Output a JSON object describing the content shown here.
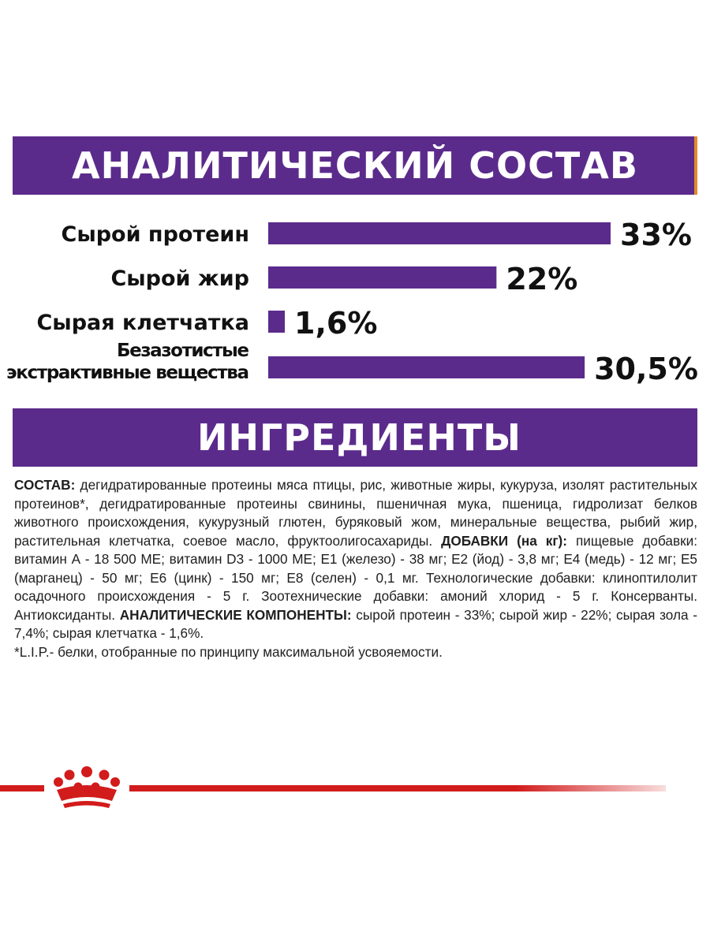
{
  "sections": {
    "analysis_title": "АНАЛИТИЧЕСКИЙ СОСТАВ",
    "ingredients_title": "ИНГРЕДИЕНТЫ"
  },
  "colors": {
    "purple": "#5b2b8c",
    "accent_orange": "#e28a2c",
    "brand_red": "#d21b1b"
  },
  "chart_data": {
    "type": "bar",
    "orientation": "horizontal",
    "categories": [
      [
        "Сырой протеин"
      ],
      [
        "Сырой жир"
      ],
      [
        "Сырая клетчатка"
      ],
      [
        "Безазотистые",
        "экстрактивные вещества"
      ]
    ],
    "values": [
      33,
      22,
      1.6,
      30.5
    ],
    "value_labels": [
      "33%",
      "22%",
      "1,6%",
      "30,5%"
    ],
    "unit": "%",
    "bar_color": "#5b2b8c",
    "xlim": [
      0,
      33
    ],
    "grid": false
  },
  "ingredients": {
    "composition_label": "СОСТАВ:",
    "composition_text": " дегидратированные протеины мяса птицы, рис,  животные жиры, кукуруза, изолят растительных протеинов*, дегидратированные протеины свинины, пшеничная мука, пшеница, гидролизат белков животного происхождения, кукурузный глютен, буряковый жом, минеральные вещества, рыбий жир, растительная клетчатка, соевое масло, фруктоолигосахариды. ",
    "additives_label": "ДОБАВКИ (на кг):",
    "additives_text": " пищевые добавки: витамин А - 18 500 МЕ; витамин D3 - 1000 МЕ; Е1 (железо) - 38 мг; Е2 (йод) - 3,8 мг; Е4 (медь) - 12 мг; Е5 (марганец) - 50 мг; Е6 (цинк) - 150 мг; Е8 (селен) - 0,1 мг.  Технологические добавки: клиноптилолит осадочного происхождения - 5 г. Зоотехнические добавки: амоний хлорид - 5 г. Консерванты. Антиоксиданты. ",
    "analytic_label": "АНАЛИТИЧЕСКИЕ КОМПОНЕНТЫ:",
    "analytic_text": " сырой протеин - 33%; сырой жир - 22%; сырая зола - 7,4%; сырая клетчатка - 1,6%.",
    "footnote": "*L.I.P.- белки, отобранные по принципу максимальной усвояемости."
  },
  "footer": {
    "logo": "crown-icon"
  }
}
